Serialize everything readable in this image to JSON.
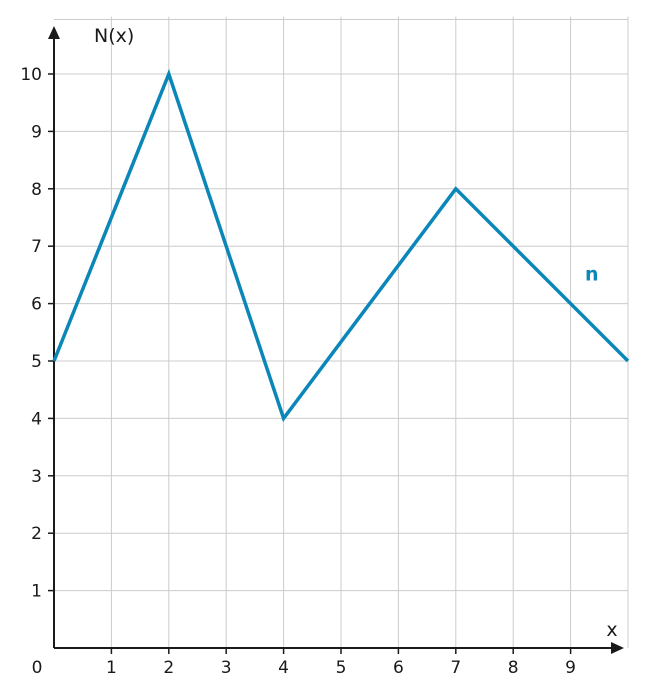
{
  "chart_data": {
    "type": "line",
    "xlabel": "x",
    "ylabel": "N(x)",
    "origin_label": "0",
    "xlim": [
      0,
      10
    ],
    "ylim": [
      0,
      11
    ],
    "x_ticks": [
      1,
      2,
      3,
      4,
      5,
      6,
      7,
      8,
      9
    ],
    "y_ticks": [
      1,
      2,
      3,
      4,
      5,
      6,
      7,
      8,
      9,
      10
    ],
    "x_tick_labels": [
      "1",
      "2",
      "3",
      "4",
      "5",
      "6",
      "7",
      "8",
      "9"
    ],
    "y_tick_labels": [
      "1",
      "2",
      "3",
      "4",
      "5",
      "6",
      "7",
      "8",
      "9",
      "10"
    ],
    "grid": true,
    "series": [
      {
        "name": "n",
        "color": "#0a86b8",
        "x": [
          0,
          2,
          4,
          7,
          10
        ],
        "y": [
          5,
          10,
          4,
          8,
          5
        ],
        "label_position": [
          9.25,
          6.4
        ]
      }
    ]
  }
}
